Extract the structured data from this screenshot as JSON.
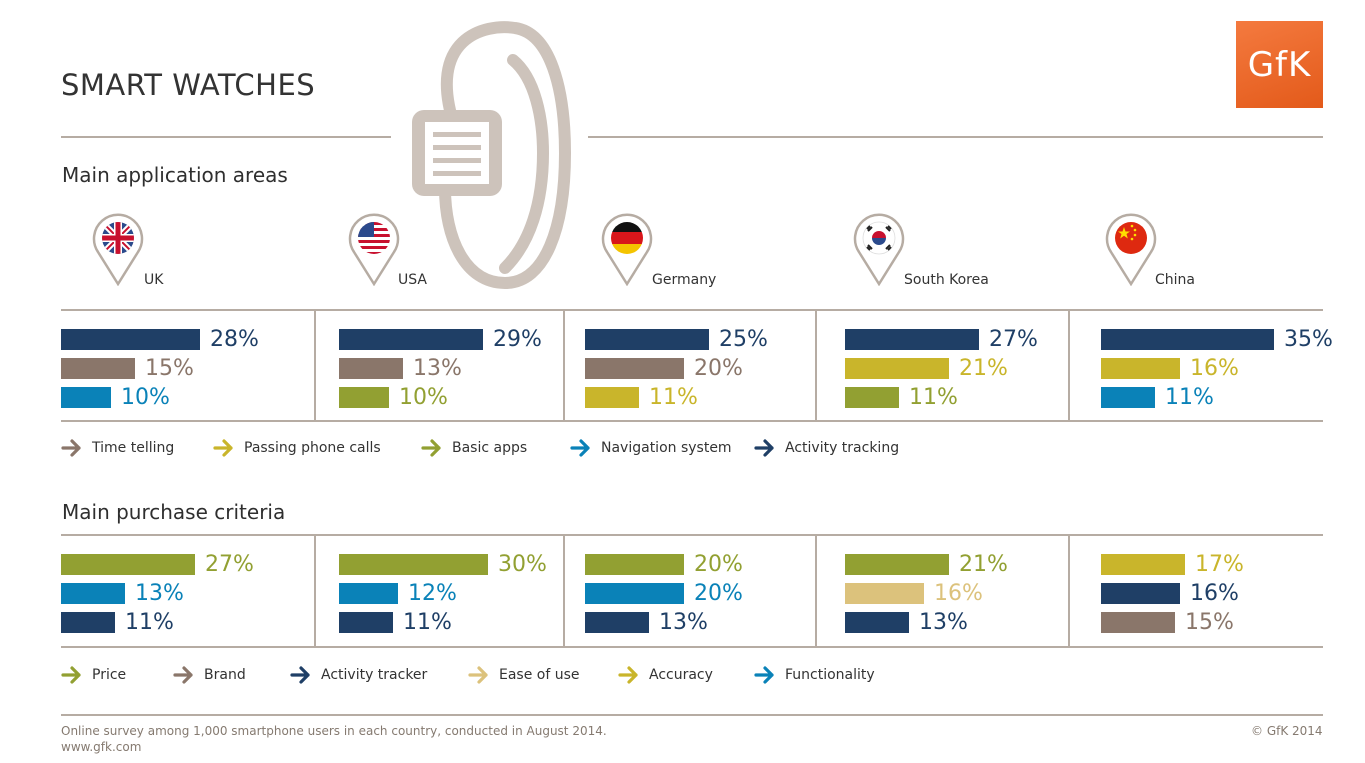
{
  "header": {
    "title": "SMART WATCHES",
    "logo_text": "GfK"
  },
  "sections": {
    "applications_title": "Main application areas",
    "purchase_title": "Main purchase criteria"
  },
  "colors": {
    "navy": "#1f3f66",
    "brown": "#8a766a",
    "blue": "#0a82b8",
    "olive": "#92a032",
    "yellow": "#c9b52b",
    "sand": "#dcc27c",
    "line": "#b6aca3"
  },
  "countries": [
    {
      "name": "UK",
      "flag": "uk-flag-icon"
    },
    {
      "name": "USA",
      "flag": "usa-flag-icon"
    },
    {
      "name": "Germany",
      "flag": "germany-flag-icon"
    },
    {
      "name": "South Korea",
      "flag": "south-korea-flag-icon"
    },
    {
      "name": "China",
      "flag": "china-flag-icon"
    }
  ],
  "chart_data": [
    {
      "type": "bar",
      "title": "Main application areas",
      "categories": [
        "UK",
        "USA",
        "Germany",
        "South Korea",
        "China"
      ],
      "value_unit": "%",
      "legend": [
        {
          "name": "Time telling",
          "color": "#8a766a"
        },
        {
          "name": "Passing phone calls",
          "color": "#c9b52b"
        },
        {
          "name": "Basic apps",
          "color": "#92a032"
        },
        {
          "name": "Navigation system",
          "color": "#0a82b8"
        },
        {
          "name": "Activity tracking",
          "color": "#1f3f66"
        }
      ],
      "groups": [
        {
          "country": "UK",
          "bars": [
            {
              "series": "Activity tracking",
              "value": 28
            },
            {
              "series": "Time telling",
              "value": 15
            },
            {
              "series": "Navigation system",
              "value": 10
            }
          ]
        },
        {
          "country": "USA",
          "bars": [
            {
              "series": "Activity tracking",
              "value": 29
            },
            {
              "series": "Time telling",
              "value": 13
            },
            {
              "series": "Basic apps",
              "value": 10
            }
          ]
        },
        {
          "country": "Germany",
          "bars": [
            {
              "series": "Activity tracking",
              "value": 25
            },
            {
              "series": "Time telling",
              "value": 20
            },
            {
              "series": "Passing phone calls",
              "value": 11
            }
          ]
        },
        {
          "country": "South Korea",
          "bars": [
            {
              "series": "Activity tracking",
              "value": 27
            },
            {
              "series": "Passing phone calls",
              "value": 21
            },
            {
              "series": "Basic apps",
              "value": 11
            }
          ]
        },
        {
          "country": "China",
          "bars": [
            {
              "series": "Activity tracking",
              "value": 35
            },
            {
              "series": "Passing phone calls",
              "value": 16
            },
            {
              "series": "Navigation system",
              "value": 11
            }
          ]
        }
      ]
    },
    {
      "type": "bar",
      "title": "Main purchase criteria",
      "categories": [
        "UK",
        "USA",
        "Germany",
        "South Korea",
        "China"
      ],
      "value_unit": "%",
      "legend": [
        {
          "name": "Price",
          "color": "#92a032"
        },
        {
          "name": "Brand",
          "color": "#8a766a"
        },
        {
          "name": "Activity tracker",
          "color": "#1f3f66"
        },
        {
          "name": "Ease of use",
          "color": "#dcc27c"
        },
        {
          "name": "Accuracy",
          "color": "#c9b52b"
        },
        {
          "name": "Functionality",
          "color": "#0a82b8"
        }
      ],
      "groups": [
        {
          "country": "UK",
          "bars": [
            {
              "series": "Price",
              "value": 27
            },
            {
              "series": "Functionality",
              "value": 13
            },
            {
              "series": "Activity tracker",
              "value": 11
            }
          ]
        },
        {
          "country": "USA",
          "bars": [
            {
              "series": "Price",
              "value": 30
            },
            {
              "series": "Functionality",
              "value": 12
            },
            {
              "series": "Activity tracker",
              "value": 11
            }
          ]
        },
        {
          "country": "Germany",
          "bars": [
            {
              "series": "Price",
              "value": 20
            },
            {
              "series": "Functionality",
              "value": 20
            },
            {
              "series": "Activity tracker",
              "value": 13
            }
          ]
        },
        {
          "country": "South Korea",
          "bars": [
            {
              "series": "Price",
              "value": 21
            },
            {
              "series": "Ease of use",
              "value": 16
            },
            {
              "series": "Activity tracker",
              "value": 13
            }
          ]
        },
        {
          "country": "China",
          "bars": [
            {
              "series": "Accuracy",
              "value": 17
            },
            {
              "series": "Activity tracker",
              "value": 16
            },
            {
              "series": "Brand",
              "value": 15
            }
          ]
        }
      ]
    }
  ],
  "footer": {
    "note": "Online survey among 1,000 smartphone users in each country, conducted in August 2014.",
    "url": "www.gfk.com",
    "copyright": "© GfK 2014"
  }
}
